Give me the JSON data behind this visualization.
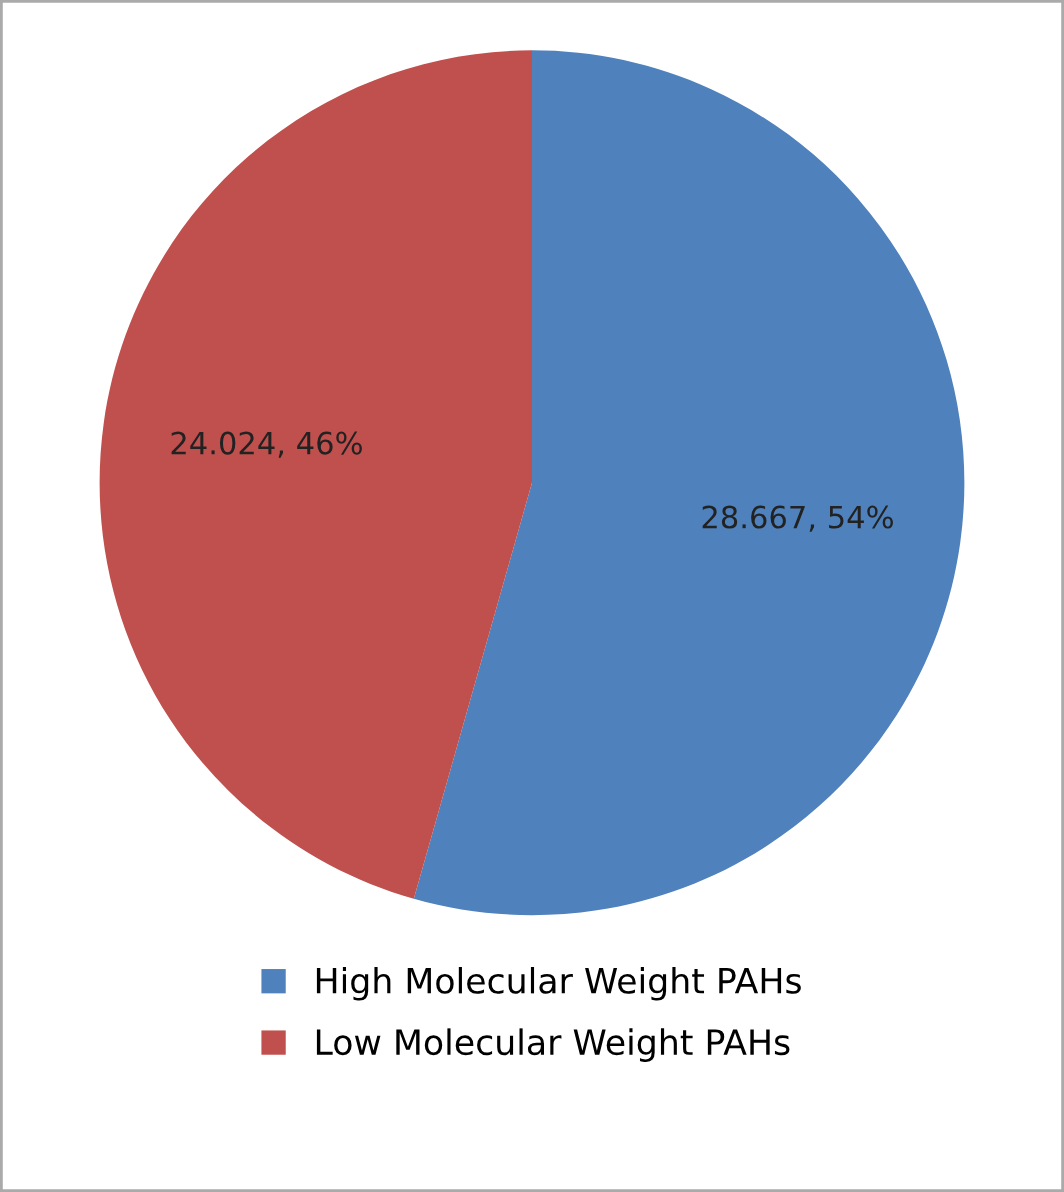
{
  "chart_data": {
    "type": "pie",
    "categories": [
      "High Molecular Weight PAHs",
      "Low Molecular Weight PAHs"
    ],
    "values": [
      28.667,
      24.024
    ],
    "colors": [
      "#4f81bd",
      "#c0504d"
    ],
    "value_labels": [
      "28.667, 54%",
      "24.024, 46%"
    ],
    "legend": "bottom"
  }
}
